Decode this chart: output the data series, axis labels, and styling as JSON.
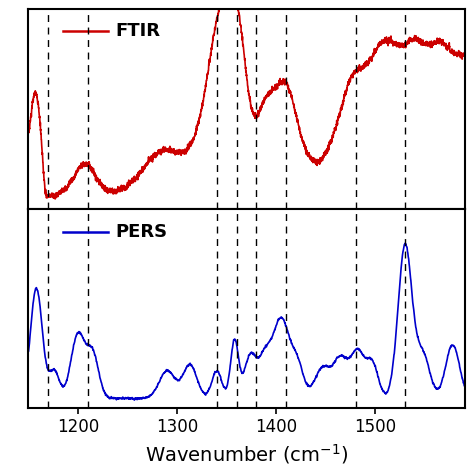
{
  "x_min": 1150,
  "x_max": 1590,
  "dashed_lines": [
    1170,
    1210,
    1340,
    1360,
    1380,
    1410,
    1480,
    1530
  ],
  "ftir_color": "#cc0000",
  "pers_color": "#0000cc",
  "xlabel": "Wavenumber (cm$^{-1}$)",
  "ftir_label": "FTIR",
  "pers_label": "PERS",
  "xlabel_fontsize": 14,
  "label_fontsize": 13,
  "tick_fontsize": 12,
  "xtick_vals": [
    1200,
    1300,
    1400,
    1500
  ]
}
